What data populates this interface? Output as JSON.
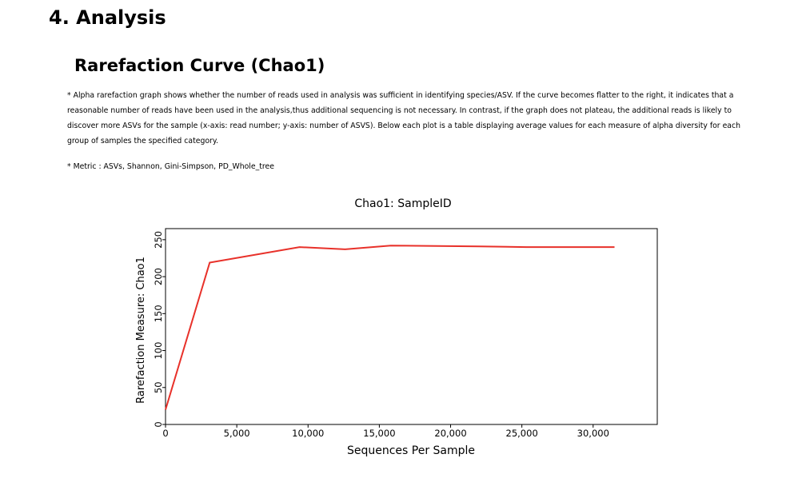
{
  "section": {
    "title": "4. Analysis"
  },
  "subsection": {
    "title": "Rarefaction Curve (Chao1)"
  },
  "description": "* Alpha rarefaction graph shows whether the number of reads used in analysis was sufficient in identifying species/ASV. If the curve becomes flatter to the right, it indicates that a reasonable number of reads have been used in the analysis,thus additional sequencing is not necessary. In contrast, if the graph does not plateau, the additional reads is likely to discover more ASVs for the sample (x-axis: read number; y-axis: number of ASVS). Below each plot is a table displaying average values for each measure of alpha diversity for each group of samples the specified category.",
  "metric_note": "* Metric : ASVs, Shannon, Gini-Simpson, PD_Whole_tree",
  "chart_data": {
    "type": "line",
    "title": "Chao1: SampleID",
    "xlabel": "Sequences Per Sample",
    "ylabel": "Rarefaction Measure: Chao1",
    "xlim": [
      0,
      34500
    ],
    "ylim": [
      0,
      265
    ],
    "x_ticks": [
      0,
      5000,
      10000,
      15000,
      20000,
      25000,
      30000
    ],
    "x_tick_labels": [
      "0",
      "5,000",
      "10,000",
      "15,000",
      "20,000",
      "25,000",
      "30,000"
    ],
    "y_ticks": [
      0,
      50,
      100,
      150,
      200,
      250
    ],
    "y_tick_labels": [
      "0",
      "50",
      "100",
      "150",
      "200",
      "250"
    ],
    "grid": false,
    "series": [
      {
        "color": "#e8312a",
        "x": [
          0,
          3100,
          9400,
          12600,
          15800,
          22000,
          25300,
          31500
        ],
        "y": [
          20,
          219,
          240,
          237,
          242,
          241,
          240,
          240
        ]
      }
    ]
  }
}
